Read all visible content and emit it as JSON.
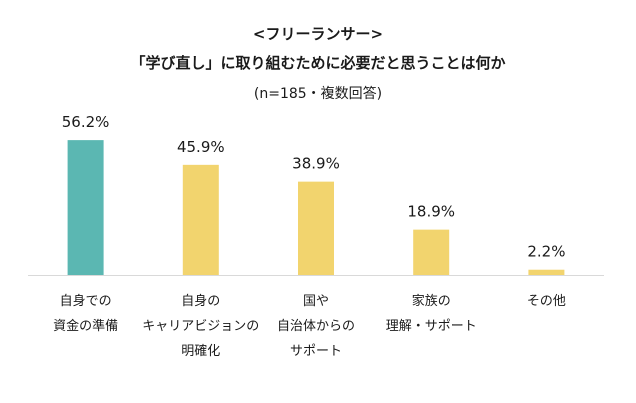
{
  "chart_data": {
    "type": "bar",
    "title": "<フリーランサー>",
    "subtitle": "「学び直し」に取り組むために必要だと思うことは何か",
    "note": "(n=185・複数回答)",
    "categories": [
      [
        "自身での",
        "資金の準備"
      ],
      [
        "自身の",
        "キャリアビジョンの",
        "明確化"
      ],
      [
        "国や",
        "自治体からの",
        "サポート"
      ],
      [
        "家族の",
        "理解・サポート"
      ],
      [
        "その他"
      ]
    ],
    "values": [
      56.2,
      45.9,
      38.9,
      18.9,
      2.2
    ],
    "value_labels": [
      "56.2%",
      "45.9%",
      "38.9%",
      "18.9%",
      "2.2%"
    ],
    "bar_colors": [
      "#5bb7b2",
      "#f2d46e",
      "#f2d46e",
      "#f2d46e",
      "#f2d46e"
    ],
    "ylim": [
      0,
      100
    ],
    "grid": false,
    "legend": "none",
    "xlabel": "",
    "ylabel": ""
  }
}
